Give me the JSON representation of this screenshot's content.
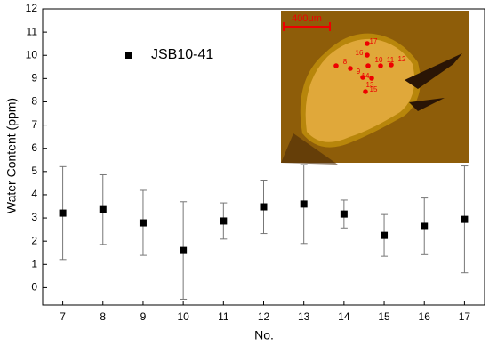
{
  "chart_data": {
    "type": "scatter",
    "xlabel": "No.",
    "ylabel": "Water Content (ppm)",
    "x": [
      7,
      8,
      9,
      10,
      11,
      12,
      13,
      14,
      15,
      16,
      17
    ],
    "series": [
      {
        "name": "JSB10-41",
        "color": "#000000",
        "marker": "square",
        "values": [
          3.21,
          3.36,
          2.79,
          1.6,
          2.87,
          3.48,
          3.6,
          3.17,
          2.25,
          2.64,
          2.94
        ],
        "errors": [
          2.0,
          1.5,
          1.4,
          2.1,
          0.78,
          1.15,
          1.7,
          0.6,
          0.9,
          1.22,
          2.3
        ]
      }
    ],
    "xlim": [
      6.5,
      17.5
    ],
    "ylim": [
      -0.75,
      12
    ],
    "xticks": [
      7,
      8,
      9,
      10,
      11,
      12,
      13,
      14,
      15,
      16,
      17
    ],
    "yticks": [
      0,
      1,
      2,
      3,
      4,
      5,
      6,
      7,
      8,
      9,
      10,
      11,
      12
    ],
    "grid": false,
    "legend": "upper left",
    "inset": {
      "scale_label": "400μm",
      "spot_labels": [
        "17",
        "16",
        "12",
        "10",
        "11",
        "8",
        "9",
        "14",
        "13",
        "15"
      ]
    }
  }
}
